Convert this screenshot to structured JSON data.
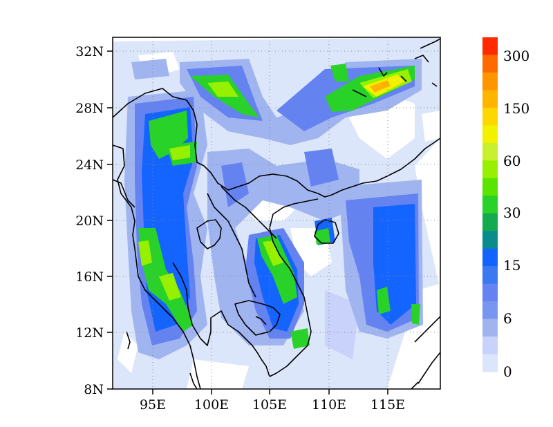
{
  "map": {
    "lat_labels": [
      "32N",
      "28N",
      "24N",
      "20N",
      "16N",
      "12N",
      "8N"
    ],
    "lon_labels": [
      "95E",
      "100E",
      "105E",
      "110E",
      "115E"
    ],
    "lon_range": [
      91.5,
      119.5
    ],
    "lat_range": [
      8,
      33
    ],
    "grid": "dotted",
    "coastline_color": "#000000"
  },
  "colorbar": {
    "labels": [
      "300",
      "150",
      "60",
      "30",
      "15",
      "6",
      "0"
    ],
    "colors": [
      "#ff2a00",
      "#ff6a00",
      "#ff9600",
      "#ffb400",
      "#ffd700",
      "#f2f200",
      "#c8f030",
      "#96f000",
      "#5ae400",
      "#28d228",
      "#14aa50",
      "#0a8c8c",
      "#1464ff",
      "#3c78f0",
      "#6482f0",
      "#7896f0",
      "#a0b4f0",
      "#c8d2fa",
      "#dce6fa"
    ]
  },
  "chart_data": {
    "type": "heatmap",
    "title": "",
    "xlabel": "",
    "ylabel": "",
    "x_ticks": [
      "95E",
      "100E",
      "105E",
      "110E",
      "115E"
    ],
    "y_ticks": [
      "32N",
      "28N",
      "24N",
      "20N",
      "16N",
      "12N",
      "8N"
    ],
    "xlim": [
      91.5,
      119.5
    ],
    "ylim": [
      8,
      33
    ],
    "colorbar_ticks": [
      "0",
      "6",
      "15",
      "30",
      "60",
      "150",
      "300"
    ],
    "peak_regions": [
      {
        "lon": 114.5,
        "lat": 29.8,
        "level": "60-150"
      },
      {
        "lon": 98.5,
        "lat": 25.0,
        "level": "30-60"
      },
      {
        "lon": 94.5,
        "lat": 17.5,
        "level": "30-60"
      },
      {
        "lon": 106.5,
        "lat": 16.0,
        "level": "30-60"
      }
    ]
  }
}
